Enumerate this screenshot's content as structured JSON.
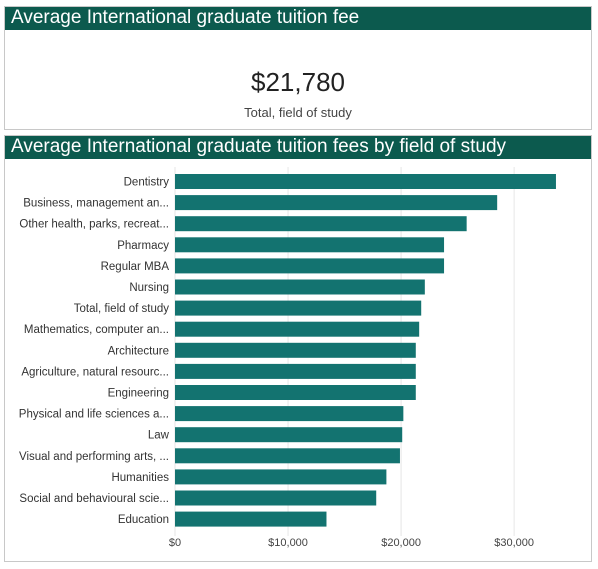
{
  "kpi": {
    "title": "Average International graduate tuition fee",
    "value": "$21,780",
    "caption": "Total, field of study"
  },
  "chart_data": {
    "type": "bar",
    "orientation": "horizontal",
    "title": "Average International graduate tuition fees by field of study",
    "xlabel": "",
    "ylabel": "",
    "grid": true,
    "xlim": [
      0,
      34500
    ],
    "ticks": [
      0,
      10000,
      20000,
      30000
    ],
    "tick_labels": [
      "$0",
      "$10,000",
      "$20,000",
      "$30,000"
    ],
    "bar_color": "#137370",
    "categories": [
      "Dentistry",
      "Business, management an...",
      "Other health, parks, recreat...",
      "Pharmacy",
      "Regular MBA",
      "Nursing",
      "Total, field of study",
      "Mathematics, computer an...",
      "Architecture",
      "Agriculture, natural resourc...",
      "Engineering",
      "Physical and life sciences a...",
      "Law",
      "Visual and performing arts, ...",
      "Humanities",
      "Social and behavioural scie...",
      "Education"
    ],
    "values": [
      33700,
      28500,
      25800,
      23800,
      23800,
      22100,
      21780,
      21600,
      21300,
      21300,
      21300,
      20200,
      20100,
      19900,
      18700,
      17800,
      13400
    ]
  }
}
